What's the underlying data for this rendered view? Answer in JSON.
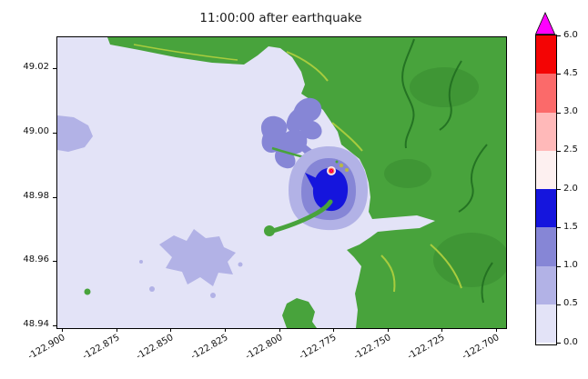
{
  "figure": {
    "title": "11:00:00 after earthquake"
  },
  "axes": {
    "x_ticks": [
      "-122.900",
      "-122.875",
      "-122.850",
      "-122.825",
      "-122.800",
      "-122.775",
      "-122.750",
      "-122.725",
      "-122.700"
    ],
    "y_ticks": [
      "49.02",
      "49.00",
      "48.98",
      "48.96",
      "48.94"
    ]
  },
  "colorbar": {
    "ticks_bottom_to_top": [
      "0.0",
      "0.5",
      "1.0",
      "1.5",
      "2.0",
      "2.5",
      "3.0",
      "4.5",
      "6.0"
    ],
    "segments_bottom_to_top": [
      "#e3e3f7",
      "#b2b2e6",
      "#8686d6",
      "#1515dd",
      "#fdf0f0",
      "#ffb9b9",
      "#fb6a6a",
      "#f40404"
    ],
    "over_color": "#ff00ff"
  },
  "palette": {
    "water_0_05": "#e3e3f7",
    "flood_05_10": "#b2b2e6",
    "flood_10_15": "#8686d6",
    "flood_15_20": "#1515dd",
    "level_20_25": "#fdf0f0",
    "level_25_30": "#ffb9b9",
    "level_30_45": "#fb6a6a",
    "level_45_60": "#f40404",
    "over_60": "#ff00ff",
    "land": "#48a33c",
    "land_dark": "#1e6b1e",
    "land_ridge": "#a8cc3e",
    "land_sand": "#b8b845"
  },
  "chart_data": {
    "type": "heatmap",
    "title": "11:00:00 after earthquake",
    "xlabel": "",
    "ylabel": "",
    "x_tick_values": [
      -122.9,
      -122.875,
      -122.85,
      -122.825,
      -122.8,
      -122.775,
      -122.75,
      -122.725,
      -122.7
    ],
    "y_tick_values": [
      48.94,
      48.96,
      48.98,
      49.0,
      49.02
    ],
    "xlim": [
      -122.905,
      -122.695
    ],
    "ylim": [
      48.939,
      49.03
    ],
    "colorbar_levels": [
      0.0,
      0.5,
      1.0,
      1.5,
      2.0,
      2.5,
      3.0,
      4.5,
      6.0
    ],
    "colorbar_extend_over": true,
    "colorbar_colors_bottom_to_top": [
      "#e3e3f7",
      "#b2b2e6",
      "#8686d6",
      "#1515dd",
      "#fdf0f0",
      "#ffb9b9",
      "#fb6a6a",
      "#f40404"
    ],
    "legend_position": "right-colorbar",
    "grid": false,
    "regions": [
      {
        "name": "open-bay-water",
        "approx_lon": -122.86,
        "approx_lat": 48.99,
        "value_range": [
          0.0,
          0.5
        ]
      },
      {
        "name": "harbor-flood-ring-outer",
        "approx_lon": -122.78,
        "approx_lat": 48.985,
        "value_range": [
          0.5,
          1.0
        ]
      },
      {
        "name": "harbor-flood-ring-inner",
        "approx_lon": -122.777,
        "approx_lat": 48.985,
        "value_range": [
          1.0,
          1.5
        ]
      },
      {
        "name": "harbor-deep-flood",
        "approx_lon": -122.775,
        "approx_lat": 48.985,
        "value_range": [
          1.5,
          2.0
        ]
      },
      {
        "name": "peak-amplitude-spot",
        "approx_lon": -122.776,
        "approx_lat": 48.99,
        "value_range": [
          2.0,
          6.0
        ]
      },
      {
        "name": "north-shore-flood-lobes",
        "approx_lon": -122.79,
        "approx_lat": 48.998,
        "value_range": [
          0.5,
          1.5
        ]
      },
      {
        "name": "southwest-shallow-flood",
        "approx_lon": -122.84,
        "approx_lat": 48.962,
        "value_range": [
          0.5,
          1.0
        ]
      },
      {
        "name": "west-edge-flood-patch",
        "approx_lon": -122.898,
        "approx_lat": 49.0,
        "value_range": [
          0.5,
          1.0
        ]
      },
      {
        "name": "land-terrain",
        "approx_lon": -122.73,
        "approx_lat": 48.98,
        "value_range": null
      }
    ]
  }
}
